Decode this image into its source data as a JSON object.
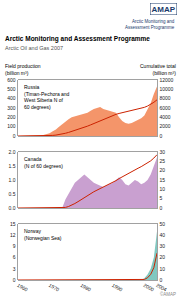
{
  "chart_data": [
    {
      "type": "area",
      "title": "Arctic Monitoring and Assessment Programme",
      "subtitle": "Arctic Oil and Gas 2007",
      "ylabel": "Field production\n(billion m³)",
      "y2label": "Cumulative total\n(billion m³)",
      "annotations": [
        "Russia\n(Timan-Pechora and\nWest Siberia N of\n60 degrees)",
        "AMAP",
        "Arctic Monitoring and\nAssessment Programme",
        "©AMAP"
      ],
      "x": [
        1960,
        1961,
        1962,
        1963,
        1964,
        1965,
        1966,
        1967,
        1968,
        1969,
        1970,
        1971,
        1972,
        1973,
        1974,
        1975,
        1976,
        1977,
        1978,
        1979,
        1980,
        1981,
        1982,
        1983,
        1984,
        1985,
        1986,
        1987,
        1988,
        1989,
        1990,
        1991,
        1992,
        1993,
        1994,
        1995,
        1996,
        1997,
        1998,
        1999,
        2000,
        2001,
        2002,
        2003,
        2004
      ],
      "series": [
        {
          "type": "area",
          "color": "#F4956A",
          "values": [
            0,
            0,
            0,
            0,
            0,
            2,
            4,
            8,
            12,
            18,
            30,
            50,
            70,
            100,
            130,
            160,
            180,
            200,
            210,
            220,
            230,
            240,
            250,
            270,
            290,
            300,
            310,
            290,
            280,
            270,
            260,
            250,
            200,
            160,
            140,
            130,
            140,
            155,
            170,
            190,
            220,
            280,
            350,
            450,
            530
          ]
        },
        {
          "type": "line",
          "color": "#CC2200",
          "axis": "y2",
          "values": [
            0,
            0,
            0,
            0,
            0,
            2,
            6,
            14,
            26,
            44,
            74,
            124,
            194,
            294,
            424,
            584,
            764,
            964,
            1174,
            1394,
            1624,
            1864,
            2114,
            2384,
            2674,
            2974,
            3284,
            3574,
            3854,
            4124,
            4384,
            4634,
            4834,
            4994,
            5134,
            5264,
            5404,
            5559,
            5729,
            5919,
            6139,
            6419,
            6769,
            7219,
            7749
          ]
        }
      ],
      "xlim": [
        1960,
        2004
      ],
      "xticks": [
        1960,
        1965,
        1970,
        1975,
        1980,
        1985,
        1990,
        1995,
        2000,
        2004
      ],
      "ylim": [
        0,
        600
      ],
      "yticks": [
        0,
        100,
        200,
        300,
        400,
        500,
        600
      ],
      "y2lim": [
        0,
        12000
      ],
      "y2ticks": [
        0,
        2000,
        4000,
        6000,
        8000,
        10000,
        12000
      ],
      "grid": false,
      "tick_labels": "y"
    },
    {
      "type": "area",
      "annotations": [
        "Canada\n(N of 60 degrees)"
      ],
      "x": [
        1960,
        1961,
        1962,
        1963,
        1964,
        1965,
        1966,
        1967,
        1968,
        1969,
        1970,
        1971,
        1972,
        1973,
        1974,
        1975,
        1976,
        1977,
        1978,
        1979,
        1980,
        1981,
        1982,
        1983,
        1984,
        1985,
        1986,
        1987,
        1988,
        1989,
        1990,
        1991,
        1992,
        1993,
        1994,
        1995,
        1996,
        1997,
        1998,
        1999,
        2000,
        2001,
        2002,
        2003,
        2004
      ],
      "series": [
        {
          "type": "area",
          "color": "#C9A0D0",
          "values": [
            0,
            0,
            0,
            0,
            0,
            0,
            0,
            0,
            0,
            0,
            0,
            0,
            0,
            0,
            0,
            0.3,
            0.5,
            0.7,
            0.9,
            1.0,
            1.1,
            1.2,
            1.1,
            1.0,
            0.9,
            0.85,
            0.8,
            0.75,
            0.8,
            0.85,
            0.9,
            1.0,
            1.1,
            1.0,
            0.85,
            0.8,
            0.9,
            1.0,
            0.95,
            0.85,
            0.9,
            1.0,
            1.2,
            1.5,
            1.8
          ]
        },
        {
          "type": "line",
          "color": "#CC2200",
          "axis": "y2",
          "values": [
            0,
            0,
            0,
            0,
            0,
            0,
            0,
            0,
            0,
            0,
            0,
            0,
            0,
            0,
            0,
            0.3,
            0.8,
            1.5,
            2.4,
            3.4,
            4.5,
            5.7,
            6.8,
            7.8,
            8.7,
            9.55,
            10.35,
            11.1,
            11.9,
            12.75,
            13.65,
            14.65,
            15.75,
            16.75,
            17.6,
            18.45,
            19.35,
            20.35,
            21.3,
            22.15,
            23.05,
            24.05,
            25.25,
            26.75,
            28.55
          ]
        }
      ],
      "xlim": [
        1960,
        2004
      ],
      "xticks": [
        1960,
        1965,
        1970,
        1975,
        1980,
        1985,
        1990,
        1995,
        2000,
        2004
      ],
      "ylim": [
        0,
        2.0
      ],
      "yticks": [
        {
          "value": 0,
          "label": "0.0"
        },
        0.5,
        {
          "value": 1.0,
          "label": "1.0"
        },
        1.5,
        {
          "value": 2.0,
          "label": "2.0"
        }
      ],
      "y2lim": [
        0,
        30
      ],
      "y2ticks": [
        0,
        5,
        10,
        15,
        20,
        25,
        30
      ],
      "grid": false,
      "tick_labels": "y"
    },
    {
      "type": "area",
      "annotations": [
        "Norway\n(Norwegian Sea)"
      ],
      "x": [
        1960,
        1961,
        1962,
        1963,
        1964,
        1965,
        1966,
        1967,
        1968,
        1969,
        1970,
        1971,
        1972,
        1973,
        1974,
        1975,
        1976,
        1977,
        1978,
        1979,
        1980,
        1981,
        1982,
        1983,
        1984,
        1985,
        1986,
        1987,
        1988,
        1989,
        1990,
        1991,
        1992,
        1993,
        1994,
        1995,
        1996,
        1997,
        1998,
        1999,
        2000,
        2001,
        2002,
        2003,
        2004
      ],
      "series": [
        {
          "type": "area",
          "color": "#80C8C0",
          "values": [
            0,
            0,
            0,
            0,
            0,
            0,
            0,
            0,
            0,
            0,
            0,
            0,
            0,
            0,
            0,
            0,
            0,
            0,
            0,
            0,
            0,
            0,
            0,
            0,
            0,
            0,
            0,
            0,
            0,
            0,
            0,
            0,
            0,
            0,
            0,
            0,
            0,
            0,
            0,
            0,
            0.5,
            1.5,
            3,
            6,
            13
          ]
        },
        {
          "type": "line",
          "color": "#CC2200",
          "axis": "y2",
          "values": [
            0,
            0,
            0,
            0,
            0,
            0,
            0,
            0,
            0,
            0,
            0,
            0,
            0,
            0,
            0,
            0,
            0,
            0,
            0,
            0,
            0,
            0,
            0,
            0,
            0,
            0,
            0,
            0,
            0,
            0,
            0,
            0,
            0,
            0,
            0,
            0,
            0,
            0,
            0,
            0,
            0.5,
            2,
            5,
            11,
            24
          ]
        }
      ],
      "xlim": [
        1960,
        2004
      ],
      "xticks": [
        {
          "value": 1960,
          "label": "1960"
        },
        {
          "value": 1965,
          "label": null
        },
        {
          "value": 1970,
          "label": "1970"
        },
        {
          "value": 1975,
          "label": null
        },
        {
          "value": 1980,
          "label": "1980"
        },
        {
          "value": 1985,
          "label": null
        },
        {
          "value": 1990,
          "label": "1990"
        },
        {
          "value": 1995,
          "label": null
        },
        {
          "value": 2000,
          "label": "2000"
        },
        {
          "value": 2004,
          "label": "2004"
        }
      ],
      "ylim": [
        0,
        15
      ],
      "yticks": [
        0,
        3,
        6,
        9,
        12,
        15
      ],
      "y2lim": [
        0,
        50
      ],
      "y2ticks": [
        0,
        10,
        20,
        30,
        40,
        50
      ],
      "grid": false
    }
  ]
}
